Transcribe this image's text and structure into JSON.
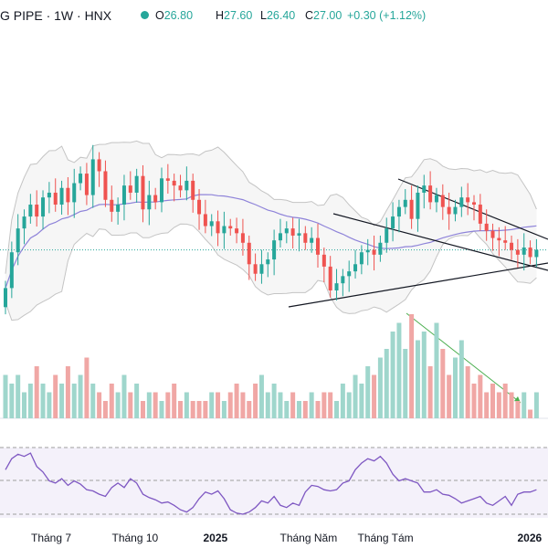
{
  "header": {
    "title": "G PIPE · 1W · HNX",
    "open_label": "O",
    "open": "26.80",
    "high_label": "H",
    "high": "27.60",
    "low_label": "L",
    "low": "26.40",
    "close_label": "C",
    "close": "27.00",
    "change": "+0.30 (+1.12%)"
  },
  "colors": {
    "up": "#26a69a",
    "down": "#ef5350",
    "vol_up": "#9fd6cc",
    "vol_down": "#f0a7a5",
    "basis": "#8e83d9",
    "band": "#c4c4c4",
    "rsi": "#7e57c2"
  },
  "chart_data": {
    "type": "candlestick",
    "interval": "1W",
    "x_labels": [
      {
        "label": "Tháng 7",
        "bold": false
      },
      {
        "label": "Tháng 10",
        "bold": false
      },
      {
        "label": "2025",
        "bold": true
      },
      {
        "label": "Tháng Năm",
        "bold": false
      },
      {
        "label": "Tháng Tám",
        "bold": false
      },
      {
        "label": "2026",
        "bold": true
      }
    ],
    "price_close": [
      25.4,
      26.9,
      27.9,
      28.4,
      28.9,
      28.4,
      29.2,
      29.4,
      28.9,
      29.6,
      29.0,
      29.8,
      30.2,
      29.3,
      30.8,
      30.3,
      29.1,
      28.6,
      28.9,
      29.7,
      29.4,
      30.1,
      28.7,
      29.3,
      29.0,
      30.0,
      29.9,
      29.7,
      29.5,
      29.9,
      29.1,
      28.5,
      28.0,
      28.2,
      27.7,
      28.0,
      27.9,
      27.7,
      27.3,
      26.4,
      26.0,
      26.4,
      26.6,
      27.4,
      27.7,
      27.9,
      27.6,
      27.7,
      27.3,
      27.5,
      26.8,
      26.3,
      25.3,
      25.6,
      25.9,
      26.1,
      26.4,
      26.9,
      27.0,
      26.8,
      27.3,
      27.9,
      28.4,
      28.8,
      29.1,
      28.3,
      29.4,
      29.7,
      29.0,
      29.3,
      28.8,
      28.5,
      28.8,
      29.2,
      29.0,
      28.9,
      28.1,
      27.8,
      27.5,
      27.4,
      27.3,
      27.0,
      26.8,
      27.1,
      26.7,
      27.0
    ],
    "volume": [
      5,
      4,
      5,
      3,
      4,
      6,
      4,
      3,
      5,
      4,
      6,
      4,
      5,
      7,
      4,
      3,
      2,
      4,
      3,
      5,
      3,
      4,
      2,
      3,
      3,
      2,
      3,
      4,
      2,
      3,
      2,
      2,
      2,
      3,
      3,
      2,
      3,
      4,
      3,
      2,
      4,
      5,
      3,
      4,
      3,
      2,
      3,
      2,
      2,
      3,
      2,
      3,
      3,
      2,
      4,
      3,
      5,
      4,
      6,
      5,
      7,
      8,
      10,
      11,
      8,
      12,
      9,
      10,
      6,
      11,
      8,
      5,
      7,
      9,
      6,
      4,
      5,
      3,
      4,
      3,
      4,
      3,
      2,
      3,
      1,
      3
    ],
    "series": [
      {
        "name": "RSI",
        "values": [
          60,
          70,
          74,
          72,
          75,
          63,
          58,
          50,
          48,
          52,
          46,
          50,
          47,
          42,
          41,
          38,
          36,
          44,
          48,
          44,
          52,
          48,
          38,
          35,
          33,
          30,
          31,
          28,
          24,
          22,
          26,
          34,
          40,
          38,
          41,
          34,
          24,
          21,
          20,
          22,
          26,
          32,
          30,
          36,
          28,
          26,
          30,
          28,
          40,
          46,
          45,
          42,
          41,
          42,
          48,
          50,
          60,
          66,
          70,
          68,
          72,
          66,
          56,
          50,
          52,
          50,
          48,
          40,
          40,
          42,
          38,
          37,
          34,
          30,
          32,
          34,
          36,
          30,
          28,
          32,
          36,
          28,
          38,
          40,
          40,
          42
        ]
      }
    ]
  }
}
